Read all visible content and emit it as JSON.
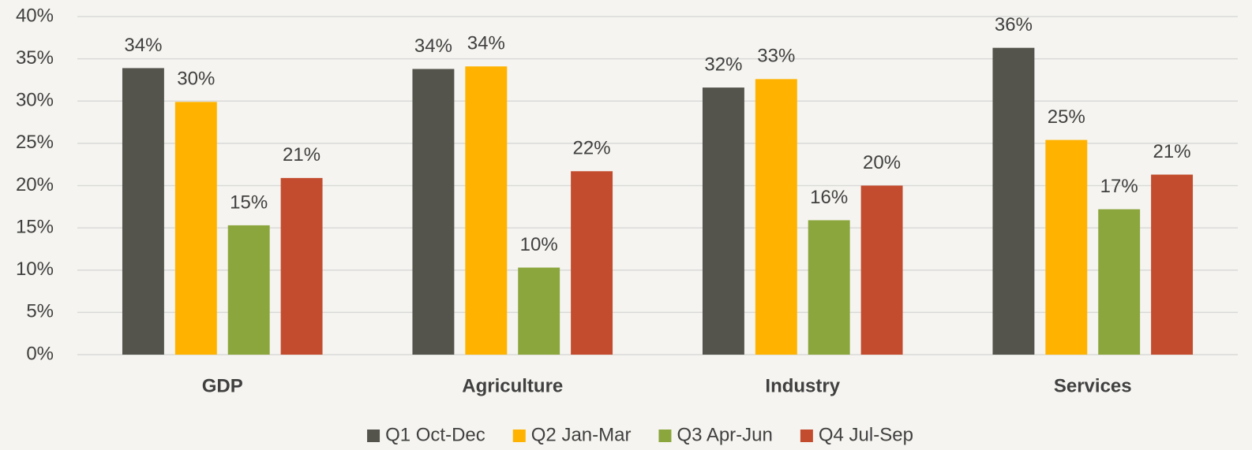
{
  "chart_data": {
    "type": "bar",
    "categories": [
      "GDP",
      "Agriculture",
      "Industry",
      "Services"
    ],
    "series": [
      {
        "name": "Q1 Oct-Dec",
        "color": "#54544c",
        "values": [
          33.9,
          33.8,
          31.6,
          36.3
        ],
        "value_labels": [
          "34%",
          "34%",
          "32%",
          "36%"
        ]
      },
      {
        "name": "Q2 Jan-Mar",
        "color": "#ffb300",
        "values": [
          29.9,
          34.1,
          32.6,
          25.4
        ],
        "value_labels": [
          "30%",
          "34%",
          "33%",
          "25%"
        ]
      },
      {
        "name": "Q3 Apr-Jun",
        "color": "#8ba63c",
        "values": [
          15.3,
          10.3,
          15.9,
          17.2
        ],
        "value_labels": [
          "15%",
          "10%",
          "16%",
          "17%"
        ]
      },
      {
        "name": "Q4 Jul-Sep",
        "color": "#c44c2e",
        "values": [
          20.9,
          21.7,
          20.0,
          21.3
        ],
        "value_labels": [
          "21%",
          "22%",
          "20%",
          "21%"
        ]
      }
    ],
    "ylim": [
      0,
      40
    ],
    "yticks": [
      {
        "value": 0,
        "label": "0%"
      },
      {
        "value": 5,
        "label": "5%"
      },
      {
        "value": 10,
        "label": "10%"
      },
      {
        "value": 15,
        "label": "15%"
      },
      {
        "value": 20,
        "label": "20%"
      },
      {
        "value": 25,
        "label": "25%"
      },
      {
        "value": 30,
        "label": "30%"
      },
      {
        "value": 35,
        "label": "35%"
      },
      {
        "value": 40,
        "label": "40%"
      }
    ],
    "grid": true,
    "legend": "bottom"
  }
}
